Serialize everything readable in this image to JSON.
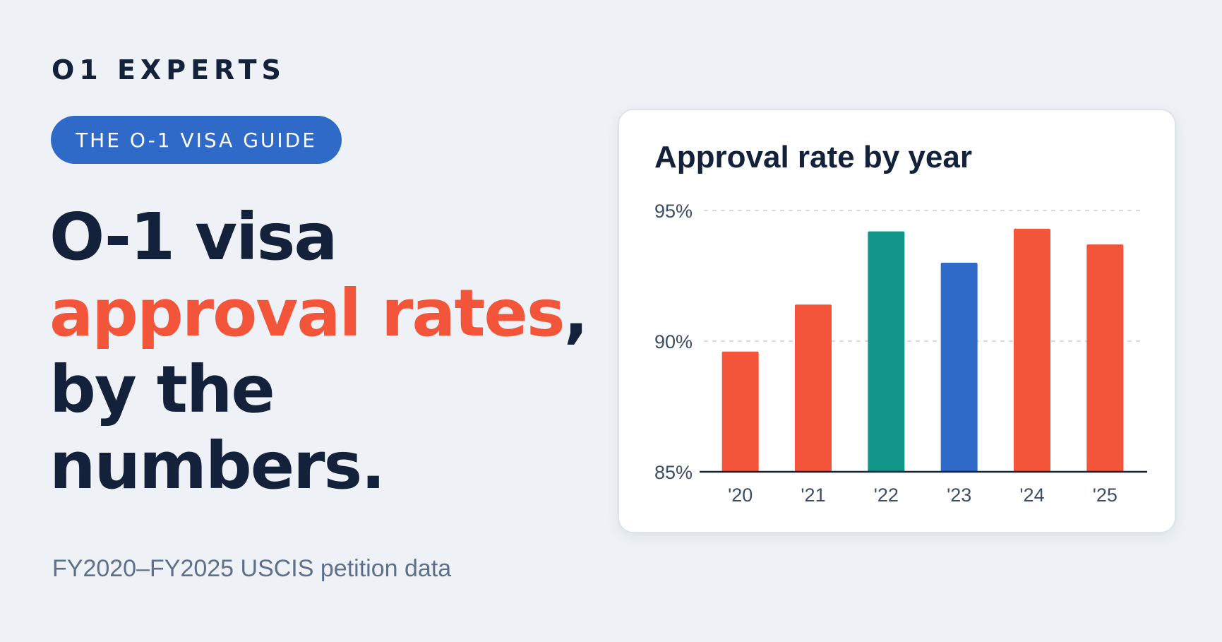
{
  "brand": "O1 EXPERTS",
  "pill_label": "THE O-1 VISA GUIDE",
  "headline": {
    "line1": "O-1 visa",
    "line2_accent": "approval rates",
    "line2_tail": ",",
    "line3": "by the",
    "line4": "numbers."
  },
  "subtitle": "FY2020–FY2025 USCIS petition data",
  "colors": {
    "background": "#eef2f6",
    "navy": "#13213a",
    "accent_red": "#f2553a",
    "teal": "#12968a",
    "blue": "#2f6ac9",
    "muted": "#5e7089"
  },
  "chart_data": {
    "type": "bar",
    "title": "Approval rate by year",
    "xlabel": "",
    "ylabel": "",
    "categories": [
      "'20",
      "'21",
      "'22",
      "'23",
      "'24",
      "'25"
    ],
    "values": [
      89.6,
      91.4,
      94.2,
      93.0,
      94.3,
      93.7
    ],
    "bar_colors": [
      "#f2553a",
      "#f2553a",
      "#12968a",
      "#2f6ac9",
      "#f2553a",
      "#f2553a"
    ],
    "ylim": [
      85,
      95
    ],
    "yticks": [
      95,
      90,
      85
    ],
    "ytick_labels": [
      "95%",
      "90%",
      "85%"
    ],
    "grid": "dashed horizontal",
    "legend": "none"
  }
}
